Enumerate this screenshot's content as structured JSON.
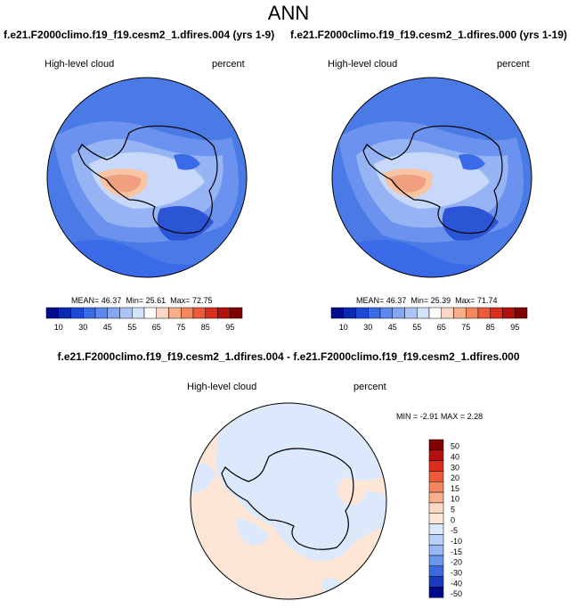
{
  "title": "ANN",
  "panels": [
    {
      "run_title": "f.e21.F2000climo.f19_f19.cesm2_1.dfires.004 (yrs 1-9)",
      "variable": "High-level cloud",
      "units": "percent",
      "stats": {
        "mean_label": "MEAN=",
        "mean": "46.37",
        "min_label": "Min=",
        "min": "25.61",
        "max_label": "Max=",
        "max": "72.75"
      }
    },
    {
      "run_title": "f.e21.F2000climo.f19_f19.cesm2_1.dfires.000 (yrs 1-19)",
      "variable": "High-level cloud",
      "units": "percent",
      "stats": {
        "mean_label": "MEAN=",
        "mean": "46.37",
        "min_label": "Min=",
        "min": "25.39",
        "max_label": "Max=",
        "max": "71.74"
      }
    }
  ],
  "colorbar_main": {
    "colors": [
      "#000a8c",
      "#0a2ab4",
      "#1e48d8",
      "#3a6ae8",
      "#5a88f0",
      "#82a8f4",
      "#aac4f8",
      "#d4e2fc",
      "#ffffff",
      "#fcd8c4",
      "#f8b08c",
      "#f48660",
      "#ec5a3a",
      "#dc2e1e",
      "#b41010",
      "#820000"
    ],
    "labels": [
      "10",
      "30",
      "45",
      "55",
      "65",
      "75",
      "85",
      "95"
    ]
  },
  "diff": {
    "title": "f.e21.F2000climo.f19_f19.cesm2_1.dfires.004 - f.e21.F2000climo.f19_f19.cesm2_1.dfires.000",
    "variable": "High-level cloud",
    "units": "percent",
    "stats": {
      "min_label": "MIN =",
      "min": "-2.91",
      "max_label": "MAX =",
      "max": "2.28"
    },
    "colorbar": {
      "colors": [
        "#820000",
        "#b41010",
        "#dc2e1e",
        "#ec5a3a",
        "#f48660",
        "#f8b08c",
        "#fcd8c4",
        "#fde6d6",
        "#dce8fc",
        "#bad2fa",
        "#96b8f4",
        "#6a98ec",
        "#3a6ae0",
        "#1a3cc0",
        "#000a8c"
      ],
      "labels": [
        "50",
        "40",
        "30",
        "20",
        "15",
        "10",
        "5",
        "0",
        "-5",
        "-10",
        "-15",
        "-20",
        "-30",
        "-40",
        "-50"
      ]
    }
  },
  "colors": {
    "ocean_blue": "#4a7ae6",
    "ocean_blue_dark": "#2a56d6",
    "diff_positive": "#fde6d6",
    "diff_negative": "#dce8fc"
  }
}
